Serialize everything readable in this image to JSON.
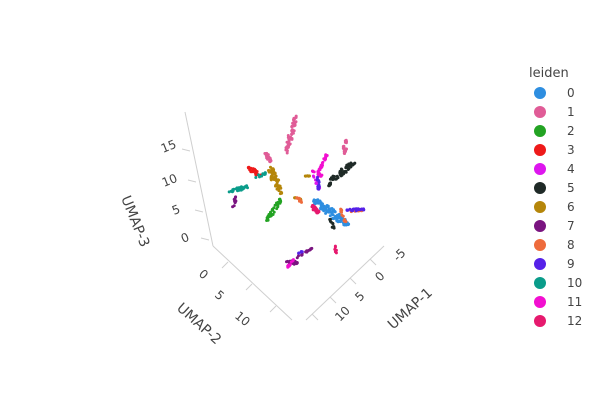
{
  "chart_data": {
    "type": "scatter3d",
    "title": "",
    "axes": {
      "x": {
        "label": "UMAP-1",
        "ticks": [
          "-5",
          "0",
          "5",
          "10"
        ]
      },
      "y": {
        "label": "UMAP-2",
        "ticks": [
          "0",
          "5",
          "10"
        ]
      },
      "z": {
        "label": "UMAP-3",
        "ticks": [
          "0",
          "5",
          "10",
          "15"
        ]
      }
    },
    "legend": {
      "title": "leiden",
      "placement": "right",
      "entries": [
        {
          "label": "0",
          "color": "#2e8ee0"
        },
        {
          "label": "1",
          "color": "#e05c97"
        },
        {
          "label": "2",
          "color": "#23a323"
        },
        {
          "label": "3",
          "color": "#ee1a1a"
        },
        {
          "label": "4",
          "color": "#dd16ee"
        },
        {
          "label": "5",
          "color": "#1f2a27"
        },
        {
          "label": "6",
          "color": "#b5860a"
        },
        {
          "label": "7",
          "color": "#7a1480"
        },
        {
          "label": "8",
          "color": "#ee6b3c"
        },
        {
          "label": "9",
          "color": "#5521e8"
        },
        {
          "label": "10",
          "color": "#0a9c8a"
        },
        {
          "label": "11",
          "color": "#f20fd0"
        },
        {
          "label": "12",
          "color": "#e6196e"
        }
      ]
    }
  }
}
